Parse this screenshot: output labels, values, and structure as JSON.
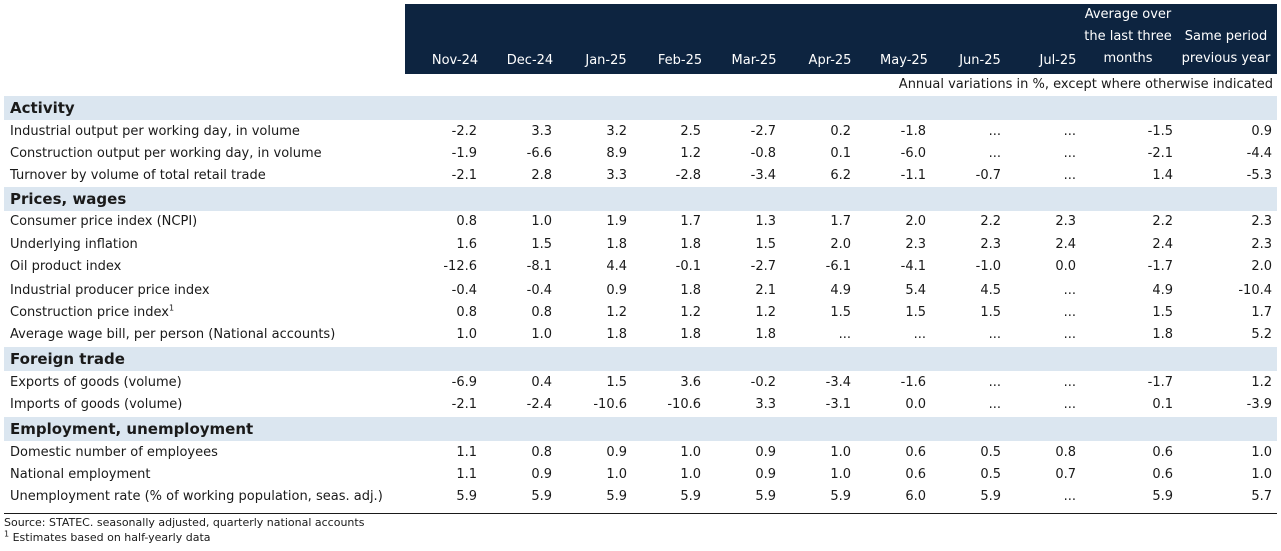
{
  "columns": [
    "Nov-24",
    "Dec-24",
    "Jan-25",
    "Feb-25",
    "Mar-25",
    "Apr-25",
    "May-25",
    "Jun-25",
    "Jul-25"
  ],
  "col_avg": [
    "Average over",
    "the last three",
    "months"
  ],
  "col_same": [
    "Same period",
    "previous year"
  ],
  "note": "Annual variations in %, except where otherwise indicated",
  "sections": [
    {
      "title": "Activity",
      "rows": [
        {
          "label": "Industrial output per working day, in volume",
          "sup": "",
          "values": [
            "-2.2",
            "3.3",
            "3.2",
            "2.5",
            "-2.7",
            "0.2",
            "-1.8",
            "...",
            "...",
            "-1.5",
            "0.9"
          ]
        },
        {
          "label": "Construction output per working day, in volume",
          "sup": "",
          "values": [
            "-1.9",
            "-6.6",
            "8.9",
            "1.2",
            "-0.8",
            "0.1",
            "-6.0",
            "...",
            "...",
            "-2.1",
            "-4.4"
          ]
        },
        {
          "label": "Turnover by volume of total retail trade",
          "sup": "",
          "values": [
            "-2.1",
            "2.8",
            "3.3",
            "-2.8",
            "-3.4",
            "6.2",
            "-1.1",
            "-0.7",
            "...",
            "1.4",
            "-5.3"
          ]
        }
      ]
    },
    {
      "title": "Prices, wages",
      "rows": [
        {
          "label": "Consumer price index (NCPI)",
          "sup": "",
          "values": [
            "0.8",
            "1.0",
            "1.9",
            "1.7",
            "1.3",
            "1.7",
            "2.0",
            "2.2",
            "2.3",
            "2.2",
            "2.3"
          ]
        },
        {
          "label": "Underlying inflation",
          "sup": "",
          "values": [
            "1.6",
            "1.5",
            "1.8",
            "1.8",
            "1.5",
            "2.0",
            "2.3",
            "2.3",
            "2.4",
            "2.4",
            "2.3"
          ]
        },
        {
          "label": "Oil product index",
          "sup": "",
          "values": [
            "-12.6",
            "-8.1",
            "4.4",
            "-0.1",
            "-2.7",
            "-6.1",
            "-4.1",
            "-1.0",
            "0.0",
            "-1.7",
            "2.0"
          ]
        },
        {
          "label": "Industrial producer price index",
          "sup": "",
          "values": [
            "-0.4",
            "-0.4",
            "0.9",
            "1.8",
            "2.1",
            "4.9",
            "5.4",
            "4.5",
            "...",
            "4.9",
            "-10.4"
          ]
        },
        {
          "label": "Construction price index",
          "sup": "1",
          "values": [
            "0.8",
            "0.8",
            "1.2",
            "1.2",
            "1.2",
            "1.5",
            "1.5",
            "1.5",
            "...",
            "1.5",
            "1.7"
          ]
        },
        {
          "label": "Average wage bill, per person (National accounts)",
          "sup": "",
          "values": [
            "1.0",
            "1.0",
            "1.8",
            "1.8",
            "1.8",
            "...",
            "...",
            "...",
            "...",
            "1.8",
            "5.2"
          ]
        }
      ]
    },
    {
      "title": "Foreign trade",
      "rows": [
        {
          "label": "Exports of goods (volume)",
          "sup": "",
          "values": [
            "-6.9",
            "0.4",
            "1.5",
            "3.6",
            "-0.2",
            "-3.4",
            "-1.6",
            "...",
            "...",
            "-1.7",
            "1.2"
          ]
        },
        {
          "label": "Imports of goods (volume)",
          "sup": "",
          "values": [
            "-2.1",
            "-2.4",
            "-10.6",
            "-10.6",
            "3.3",
            "-3.1",
            "0.0",
            "...",
            "...",
            "0.1",
            "-3.9"
          ]
        }
      ]
    },
    {
      "title": "Employment, unemployment",
      "rows": [
        {
          "label": "Domestic number of employees",
          "sup": "",
          "values": [
            "1.1",
            "0.8",
            "0.9",
            "1.0",
            "0.9",
            "1.0",
            "0.6",
            "0.5",
            "0.8",
            "0.6",
            "1.0"
          ]
        },
        {
          "label": "National employment",
          "sup": "",
          "values": [
            "1.1",
            "0.9",
            "1.0",
            "1.0",
            "0.9",
            "1.0",
            "0.6",
            "0.5",
            "0.7",
            "0.6",
            "1.0"
          ]
        },
        {
          "label": "Unemployment rate (% of working population, seas. adj.)",
          "sup": "",
          "values": [
            "5.9",
            "5.9",
            "5.9",
            "5.9",
            "5.9",
            "5.9",
            "6.0",
            "5.9",
            "...",
            "5.9",
            "5.7"
          ]
        }
      ]
    }
  ],
  "footer": {
    "source": "Source: STATEC. seasonally adjusted, quarterly national accounts",
    "footnote_mark": "1",
    "footnote": " Estimates based on half-yearly data"
  }
}
